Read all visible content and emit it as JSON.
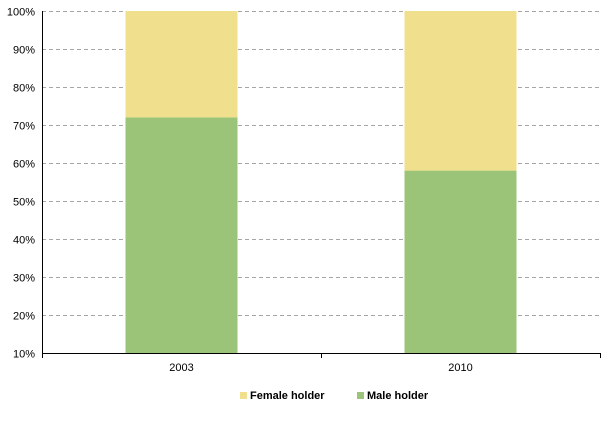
{
  "chart_data": {
    "type": "bar",
    "stacked": "percent",
    "categories": [
      "2003",
      "2010"
    ],
    "series": [
      {
        "name": "Male holder",
        "values": [
          72,
          58
        ],
        "color": "#9bc478"
      },
      {
        "name": "Female holder",
        "values": [
          28,
          42
        ],
        "color": "#f0df8c"
      }
    ],
    "y_ticks": [
      "10%",
      "20%",
      "30%",
      "40%",
      "50%",
      "60%",
      "70%",
      "80%",
      "90%",
      "100%"
    ],
    "ylim": [
      10,
      100
    ],
    "grid": "horizontal-dashed",
    "legend_position": "bottom",
    "legend_order": [
      "Female holder",
      "Male holder"
    ],
    "title": "",
    "xlabel": "",
    "ylabel": ""
  }
}
